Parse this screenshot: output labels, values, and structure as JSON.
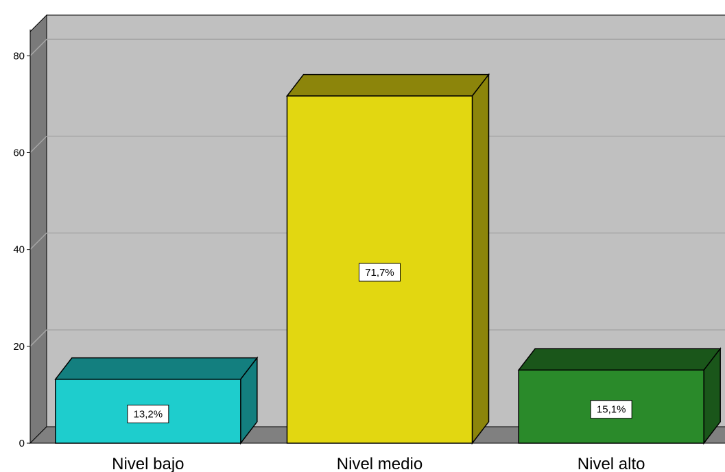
{
  "chart_data": {
    "type": "bar",
    "categories": [
      "Nivel bajo",
      "Nivel medio",
      "Nivel alto"
    ],
    "values": [
      13.2,
      71.7,
      15.1
    ],
    "data_labels": [
      "13,2%",
      "71,7%",
      "15,1%"
    ],
    "bar_colors": [
      "#1ecdcd",
      "#e2d711",
      "#2a8a2a"
    ],
    "ylim": [
      0,
      85
    ],
    "yticks": [
      0,
      20,
      40,
      60,
      80
    ],
    "grid": true,
    "style": "3d",
    "background_color": "#c0c0c0",
    "floor_color": "#808080"
  }
}
